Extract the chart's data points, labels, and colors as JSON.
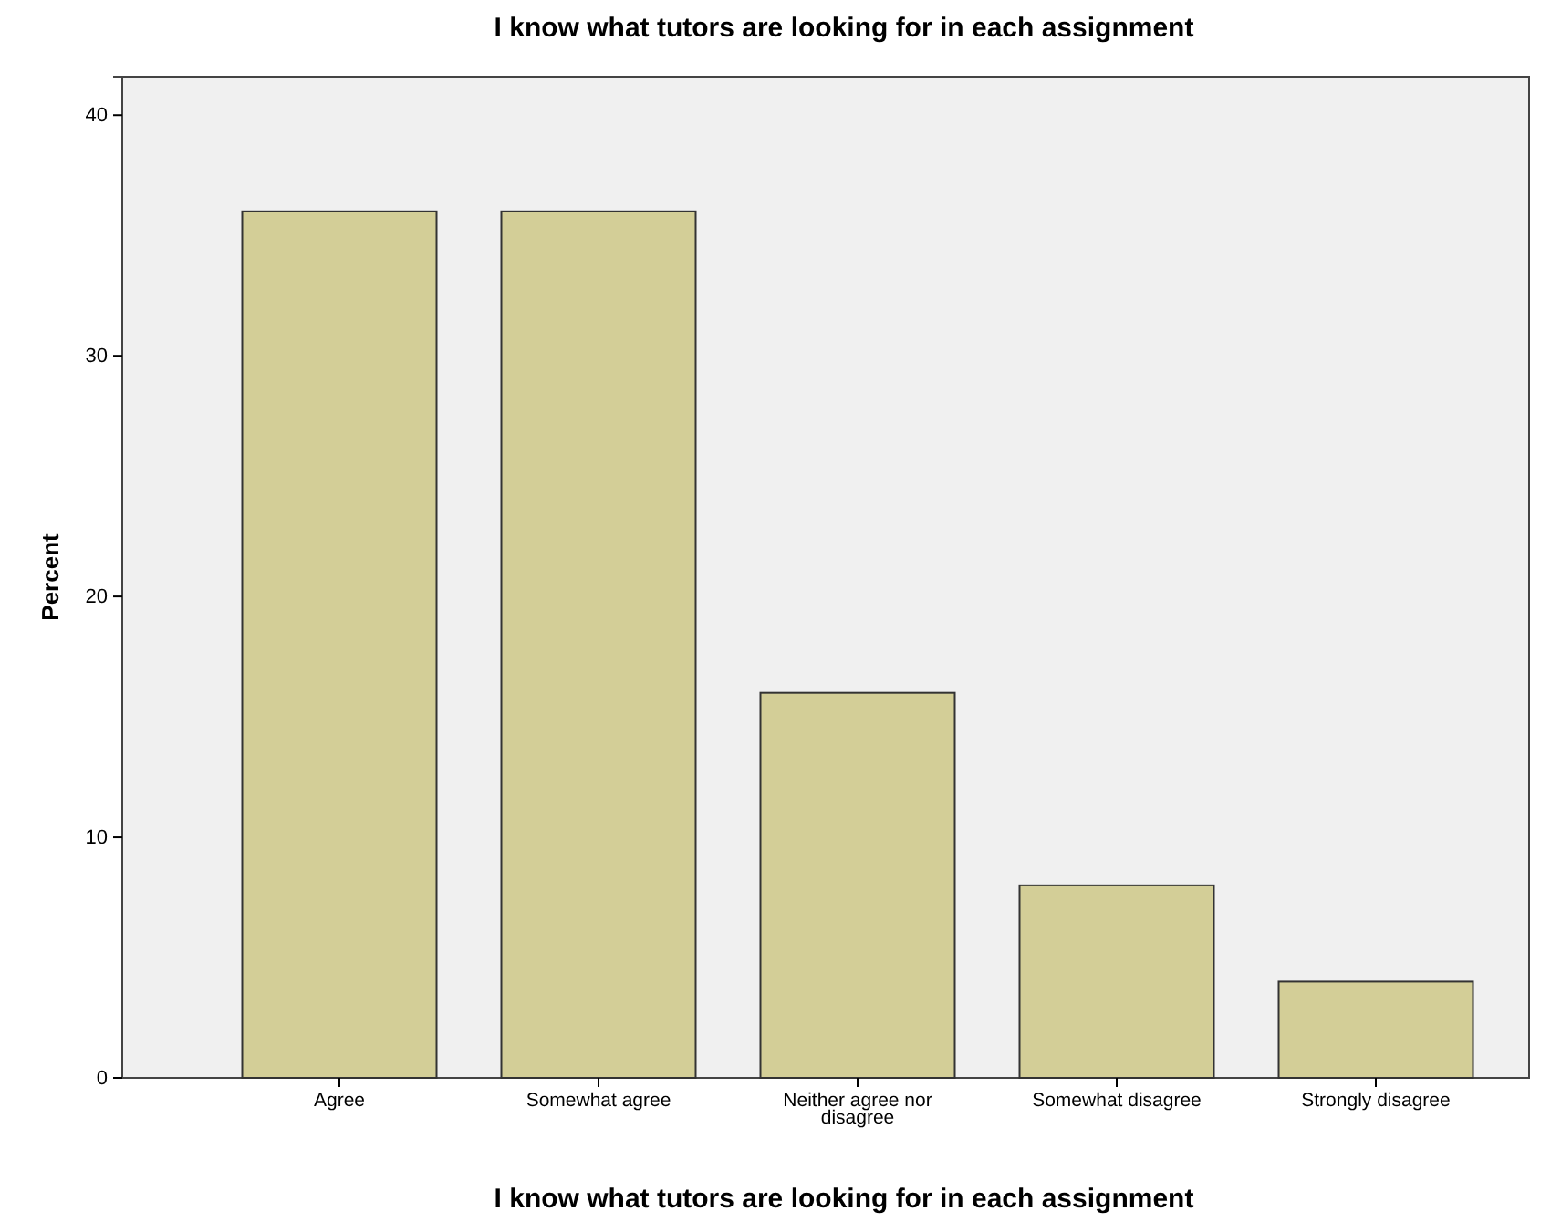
{
  "chart_data": {
    "type": "bar",
    "title": "I know what tutors are looking for in each assignment",
    "xlabel": "I know what tutors are looking for in each assignment",
    "ylabel": "Percent",
    "categories": [
      "Agree",
      "Somewhat agree",
      "Neither agree nor disagree",
      "Somewhat disagree",
      "Strongly disagree"
    ],
    "values": [
      36,
      36,
      16,
      8,
      4
    ],
    "color": "#d3ce97",
    "ylim": [
      0,
      41.6
    ],
    "yticks": [
      0,
      10,
      20,
      30,
      40
    ],
    "grid": false
  }
}
